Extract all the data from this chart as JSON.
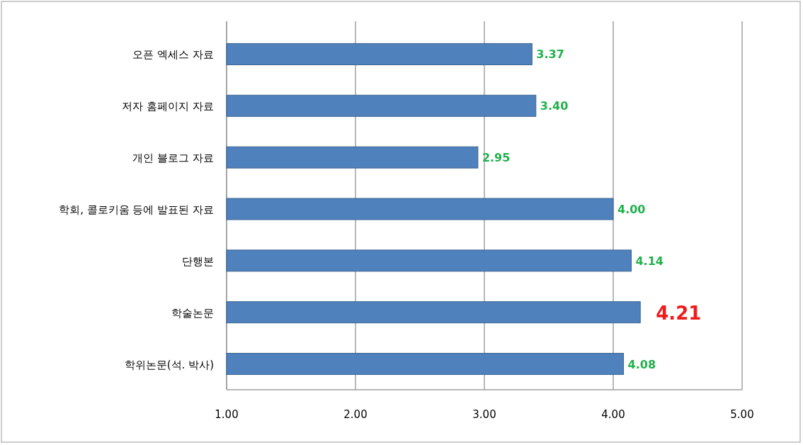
{
  "chart_data": {
    "type": "bar",
    "orientation": "horizontal",
    "categories": [
      "오픈 엑세스 자료",
      "저자 홈페이지 자료",
      "개인 블로그 자료",
      "학회, 콜로키움 등에 발표된 자료",
      "단행본",
      "학술논문",
      "학위논문(석. 박사)"
    ],
    "values": [
      3.37,
      3.4,
      2.95,
      4.0,
      4.14,
      4.21,
      4.08
    ],
    "value_labels": [
      "3.37",
      "3.40",
      "2.95",
      "4.00",
      "4.14",
      null,
      "4.08"
    ],
    "color": "#4f81bd",
    "xlim": [
      1,
      5
    ],
    "xticks": [
      {
        "value": 1,
        "label": "1.00"
      },
      {
        "value": 2,
        "label": "2.00"
      },
      {
        "value": 3,
        "label": "3.00"
      },
      {
        "value": 4,
        "label": "4.00"
      },
      {
        "value": 5,
        "label": "5.00"
      }
    ],
    "grid": "x",
    "annotations": [
      {
        "text": "4.21",
        "x": 4.21,
        "y": "학술논문"
      }
    ]
  }
}
